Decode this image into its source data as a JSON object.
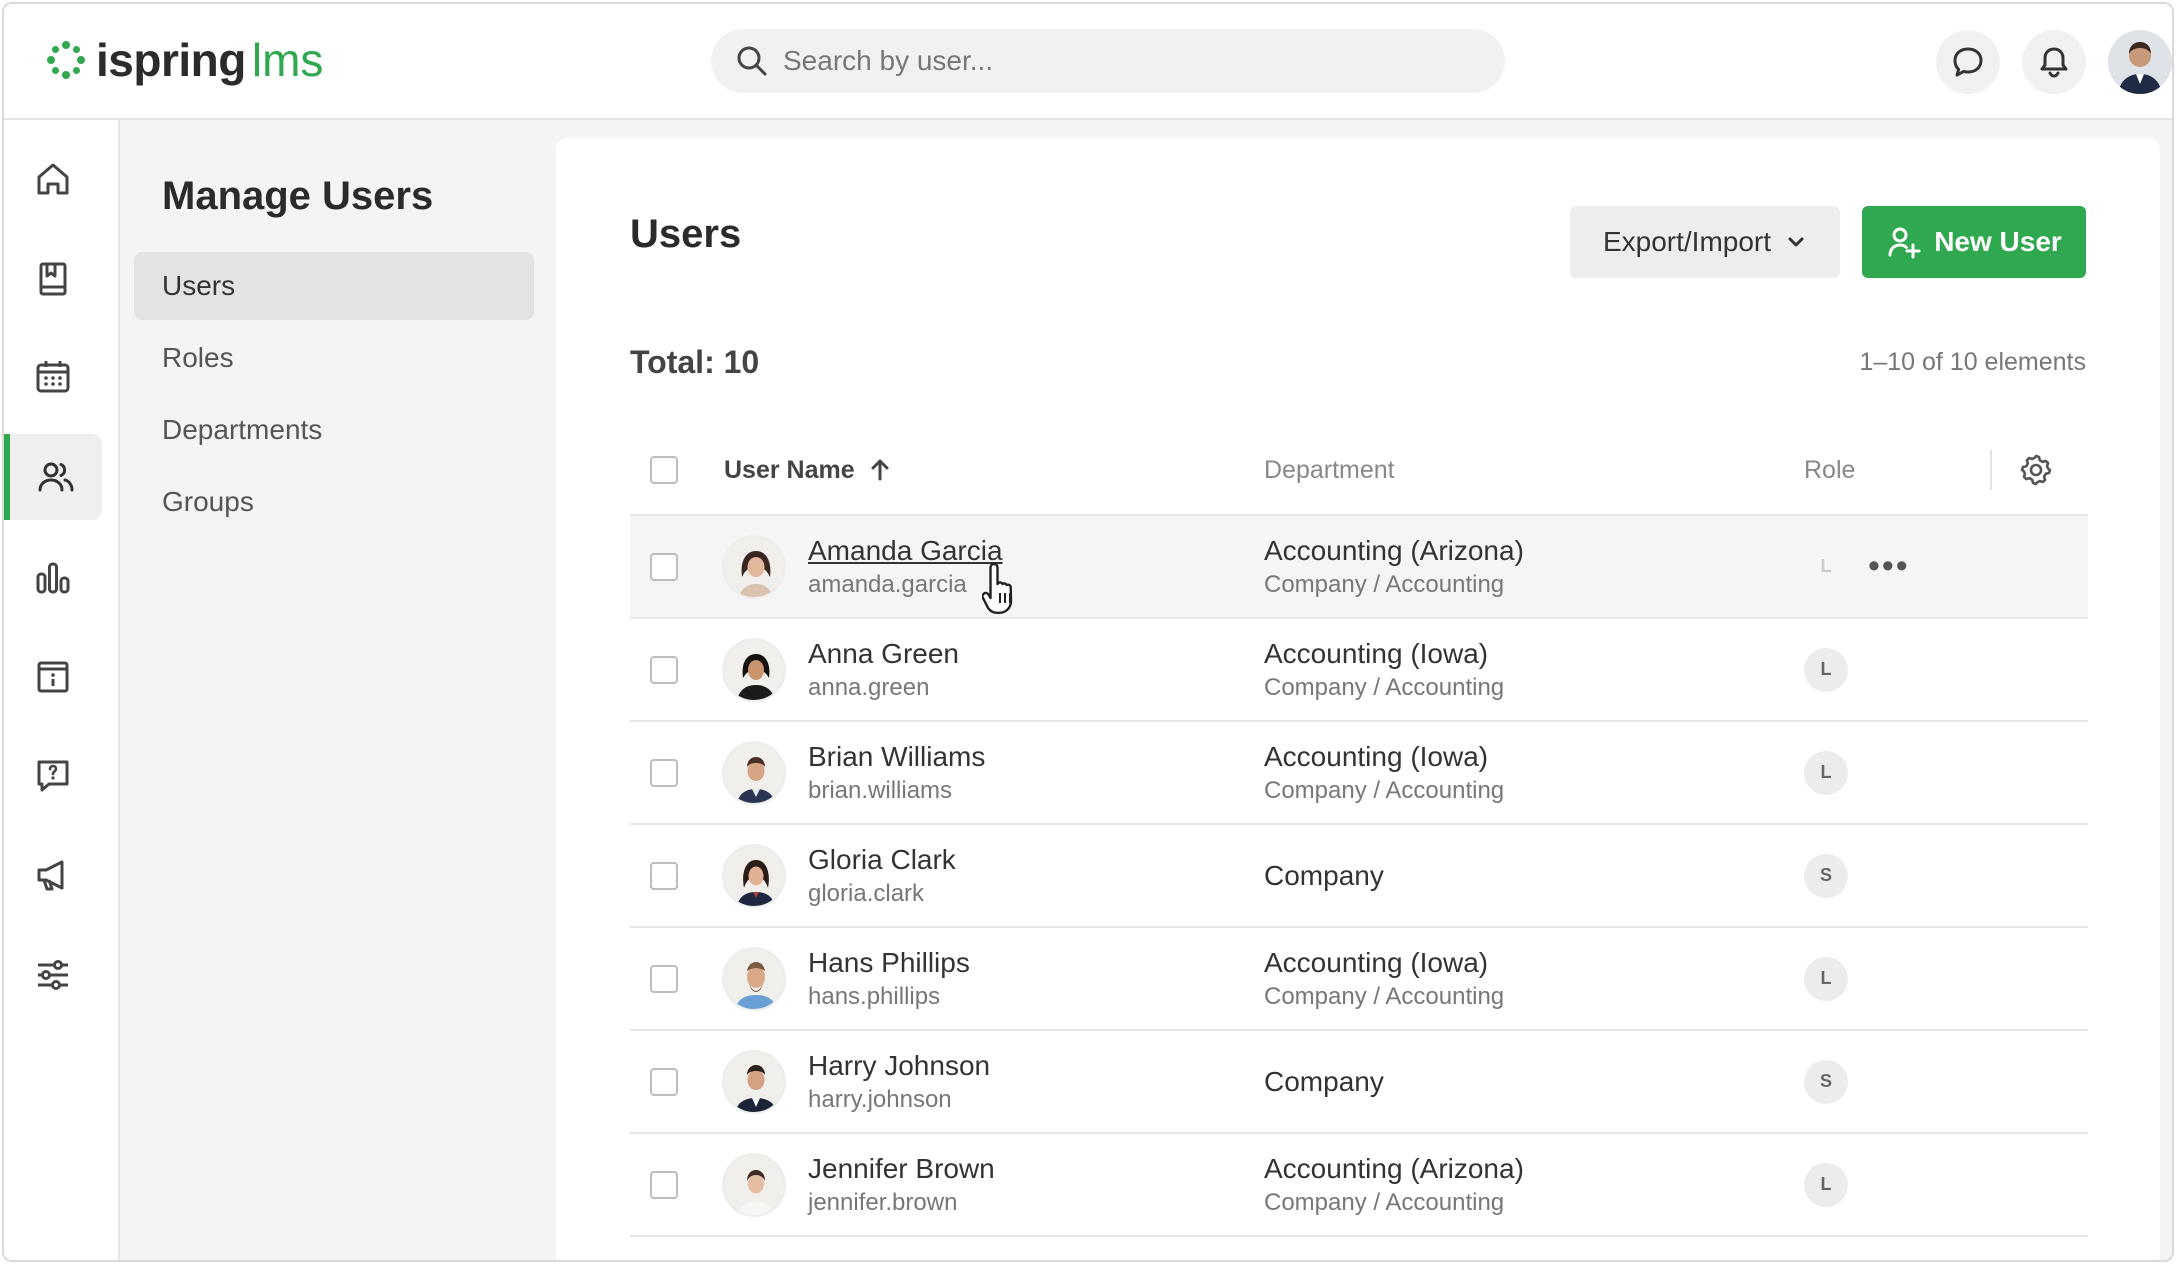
{
  "app": {
    "logo_main": "ispring",
    "logo_accent": "lms"
  },
  "search": {
    "placeholder": "Search by user..."
  },
  "subnav": {
    "title": "Manage Users",
    "items": [
      {
        "label": "Users",
        "active": true
      },
      {
        "label": "Roles",
        "active": false
      },
      {
        "label": "Departments",
        "active": false
      },
      {
        "label": "Groups",
        "active": false
      }
    ]
  },
  "rail": {
    "items": [
      {
        "icon": "home-icon"
      },
      {
        "icon": "courses-book-icon"
      },
      {
        "icon": "calendar-icon"
      },
      {
        "icon": "users-icon",
        "active": true
      },
      {
        "icon": "reports-chart-icon"
      },
      {
        "icon": "info-board-icon"
      },
      {
        "icon": "question-chat-icon"
      },
      {
        "icon": "megaphone-icon"
      },
      {
        "icon": "settings-sliders-icon"
      }
    ]
  },
  "main": {
    "title": "Users",
    "export_label": "Export/Import",
    "new_user_label": "New User",
    "total_label": "Total: 10",
    "range_label": "1–10 of 10 elements",
    "columns": {
      "name": "User Name",
      "department": "Department",
      "role": "Role"
    },
    "rows": [
      {
        "name": "Amanda Garcia",
        "login": "amanda.garcia",
        "department": "Accounting (Arizona)",
        "path": "Company / Accounting",
        "role": "L"
      },
      {
        "name": "Anna Green",
        "login": "anna.green",
        "department": "Accounting (Iowa)",
        "path": "Company / Accounting",
        "role": "L"
      },
      {
        "name": "Brian Williams",
        "login": "brian.williams",
        "department": "Accounting (Iowa)",
        "path": "Company / Accounting",
        "role": "L"
      },
      {
        "name": "Gloria Clark",
        "login": "gloria.clark",
        "department": "Company",
        "path": "",
        "role": "S"
      },
      {
        "name": "Hans Phillips",
        "login": "hans.phillips",
        "department": "Accounting (Iowa)",
        "path": "Company / Accounting",
        "role": "L"
      },
      {
        "name": "Harry Johnson",
        "login": "harry.johnson",
        "department": "Company",
        "path": "",
        "role": "S"
      },
      {
        "name": "Jennifer Brown",
        "login": "jennifer.brown",
        "department": "Accounting (Arizona)",
        "path": "Company / Accounting",
        "role": "L"
      }
    ],
    "row_menu": "•••"
  },
  "colors": {
    "brand_green": "#2fa84f"
  }
}
